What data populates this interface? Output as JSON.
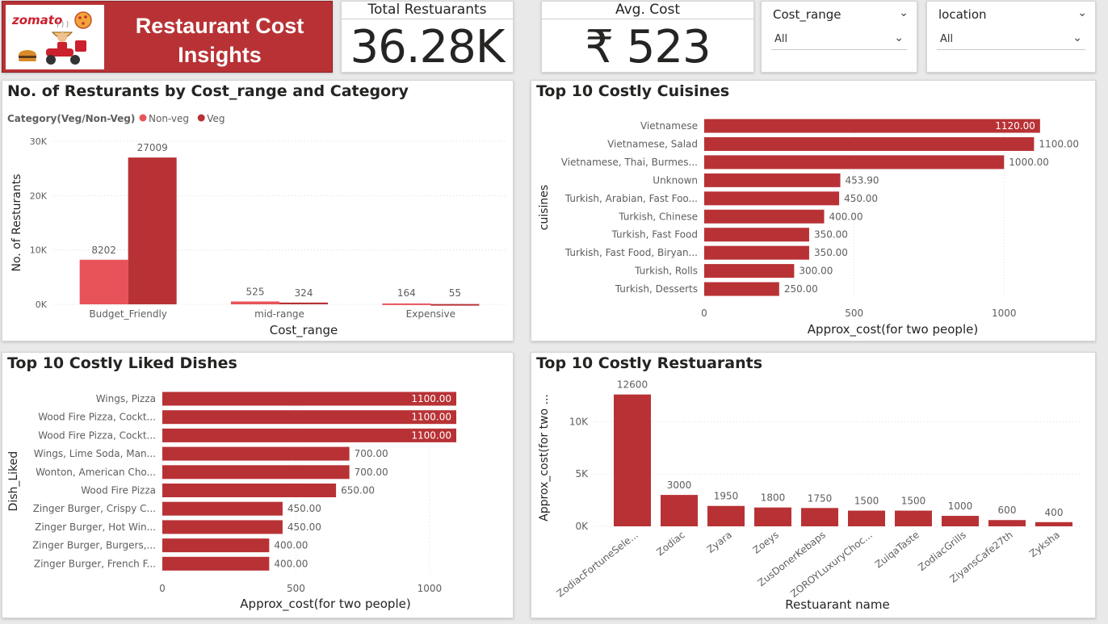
{
  "header": {
    "brand": "zomato",
    "title": "Restaurant Cost Insights"
  },
  "kpis": {
    "total_restaurants": {
      "label": "Total Restuarants",
      "value": "36.28K"
    },
    "avg_cost": {
      "label": "Avg. Cost",
      "value": "₹ 523"
    }
  },
  "slicers": {
    "cost_range": {
      "title": "Cost_range",
      "value": "All"
    },
    "location": {
      "title": "location",
      "value": "All"
    }
  },
  "colors": {
    "veg": "#b83235",
    "non_veg": "#e8535a",
    "bar": "#b83235",
    "banner": "#b83235"
  },
  "chart_data": [
    {
      "id": "restaurants_by_cost_range",
      "type": "bar",
      "title": "No. of Resturants by Cost_range and Category",
      "legend_title": "Category(Veg/Non-Veg)",
      "legend_position": "top-left",
      "categories": [
        "Budget_Friendly",
        "mid-range",
        "Expensive"
      ],
      "series": [
        {
          "name": "Non-veg",
          "values": [
            8202,
            525,
            164
          ],
          "labels": [
            "8202",
            "525",
            "164"
          ]
        },
        {
          "name": "Veg",
          "values": [
            27009,
            324,
            55
          ],
          "labels": [
            "27009",
            "324",
            "55"
          ]
        }
      ],
      "xlabel": "Cost_range",
      "ylabel": "No. of Resturants",
      "ylim": [
        0,
        30000
      ],
      "yticks": [
        0,
        10000,
        20000,
        30000
      ],
      "ytick_labels": [
        "0K",
        "10K",
        "20K",
        "30K"
      ],
      "grid": true
    },
    {
      "id": "top_costly_cuisines",
      "type": "bar",
      "orientation": "horizontal",
      "title": "Top 10 Costly Cuisines",
      "categories": [
        "Vietnamese",
        "Vietnamese, Salad",
        "Vietnamese, Thai, Burmes...",
        "Unknown",
        "Turkish, Arabian, Fast Foo...",
        "Turkish, Chinese",
        "Turkish, Fast Food",
        "Turkish, Fast Food, Biryan...",
        "Turkish, Rolls",
        "Turkish, Desserts"
      ],
      "values": [
        1120,
        1100,
        1000,
        453.9,
        450,
        400,
        350,
        350,
        300,
        250
      ],
      "labels": [
        "1120.00",
        "1100.00",
        "1000.00",
        "453.90",
        "450.00",
        "400.00",
        "350.00",
        "350.00",
        "300.00",
        "250.00"
      ],
      "xlabel": "Approx_cost(for two people)",
      "ylabel": "cuisines",
      "xlim": [
        0,
        1150
      ],
      "xticks": [
        0,
        500,
        1000
      ],
      "xtick_labels": [
        "0",
        "500",
        "1000"
      ],
      "grid": true
    },
    {
      "id": "top_costly_liked_dishes",
      "type": "bar",
      "orientation": "horizontal",
      "title": "Top 10 Costly Liked Dishes",
      "categories": [
        "Wings, Pizza",
        "Wood Fire Pizza, Cockt...",
        "Wood Fire Pizza, Cockt...",
        "Wings, Lime Soda, Man...",
        "Wonton, American Cho...",
        "Wood Fire Pizza",
        "Zinger Burger, Crispy C...",
        "Zinger Burger, Hot Win...",
        "Zinger Burger, Burgers,...",
        "Zinger Burger, French F..."
      ],
      "values": [
        1100,
        1100,
        1100,
        700,
        700,
        650,
        450,
        450,
        400,
        400
      ],
      "labels": [
        "1100.00",
        "1100.00",
        "1100.00",
        "700.00",
        "700.00",
        "650.00",
        "450.00",
        "450.00",
        "400.00",
        "400.00"
      ],
      "xlabel": "Approx_cost(for two people)",
      "ylabel": "Dish_Liked",
      "xlim": [
        0,
        1100
      ],
      "xticks": [
        0,
        500,
        1000
      ],
      "xtick_labels": [
        "0",
        "500",
        "1000"
      ],
      "grid": true
    },
    {
      "id": "top_costly_restaurants",
      "type": "bar",
      "title": "Top 10 Costly Restuarants",
      "categories": [
        "ZodiacFortuneSele...",
        "Zodiac",
        "Zyara",
        "Zoeys",
        "ZusDonerKebaps",
        "ZOROYLuxuryChoc...",
        "ZuiqaTaste",
        "ZodiacGrills",
        "ZiyansCafe27th",
        "Zyksha"
      ],
      "values": [
        12600,
        3000,
        1950,
        1800,
        1750,
        1500,
        1500,
        1000,
        600,
        400
      ],
      "labels": [
        "12600",
        "3000",
        "1950",
        "1800",
        "1750",
        "1500",
        "1500",
        "1000",
        "600",
        "400"
      ],
      "xlabel": "Restuarant name",
      "ylabel": "Approx_cost(for two ...",
      "ylim": [
        0,
        13500
      ],
      "yticks": [
        0,
        5000,
        10000
      ],
      "ytick_labels": [
        "0K",
        "5K",
        "10K"
      ],
      "grid": true
    }
  ]
}
